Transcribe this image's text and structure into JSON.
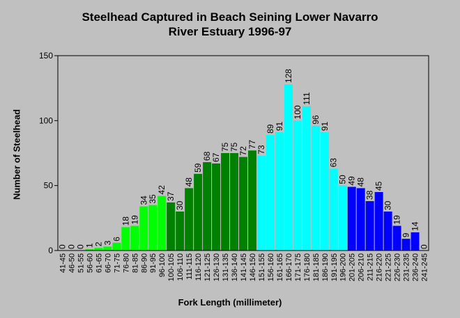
{
  "chart_data": {
    "type": "bar",
    "title_line1": "Steelhead Captured in Beach Seining Lower Navarro",
    "title_line2": "River Estuary 1996-97",
    "xlabel": "Fork Length (millimeter)",
    "ylabel": "Number of Steelhead",
    "ylim": [
      0,
      150
    ],
    "yticks": [
      0,
      50,
      100,
      150
    ],
    "grid": false,
    "categories": [
      "41-45",
      "46-50",
      "51-55",
      "56-60",
      "61-65",
      "66-70",
      "71-75",
      "76-80",
      "81-85",
      "86-90",
      "91-95",
      "96-100",
      "100-105",
      "106-110",
      "111-115",
      "116-120",
      "121-125",
      "126-130",
      "131-135",
      "136-140",
      "141-145",
      "146-150",
      "151-155",
      "156-160",
      "161-165",
      "166-170",
      "171-175",
      "176-180",
      "181-185",
      "186-190",
      "191-195",
      "196-200",
      "201-205",
      "206-210",
      "211-215",
      "216-220",
      "221-225",
      "226-230",
      "231-235",
      "236-240",
      "241-245"
    ],
    "values": [
      0,
      0,
      0,
      1,
      2,
      3,
      6,
      18,
      19,
      34,
      35,
      42,
      37,
      30,
      48,
      59,
      68,
      67,
      75,
      75,
      72,
      77,
      73,
      89,
      91,
      128,
      100,
      111,
      96,
      91,
      63,
      50,
      49,
      48,
      38,
      45,
      30,
      19,
      9,
      14,
      0
    ],
    "colors": [
      "#00ff00",
      "#00ff00",
      "#00ff00",
      "#00ff00",
      "#00ff00",
      "#00ff00",
      "#00ff00",
      "#00ff00",
      "#00ff00",
      "#00ff00",
      "#00ff00",
      "#00ff00",
      "#008000",
      "#008000",
      "#008000",
      "#008000",
      "#008000",
      "#008000",
      "#008000",
      "#008000",
      "#008000",
      "#008000",
      "#00ffff",
      "#00ffff",
      "#00ffff",
      "#00ffff",
      "#00ffff",
      "#00ffff",
      "#00ffff",
      "#00ffff",
      "#00ffff",
      "#00ffff",
      "#0000ff",
      "#0000ff",
      "#0000ff",
      "#0000ff",
      "#0000ff",
      "#0000ff",
      "#0000ff",
      "#0000ff",
      "#0000ff"
    ]
  }
}
